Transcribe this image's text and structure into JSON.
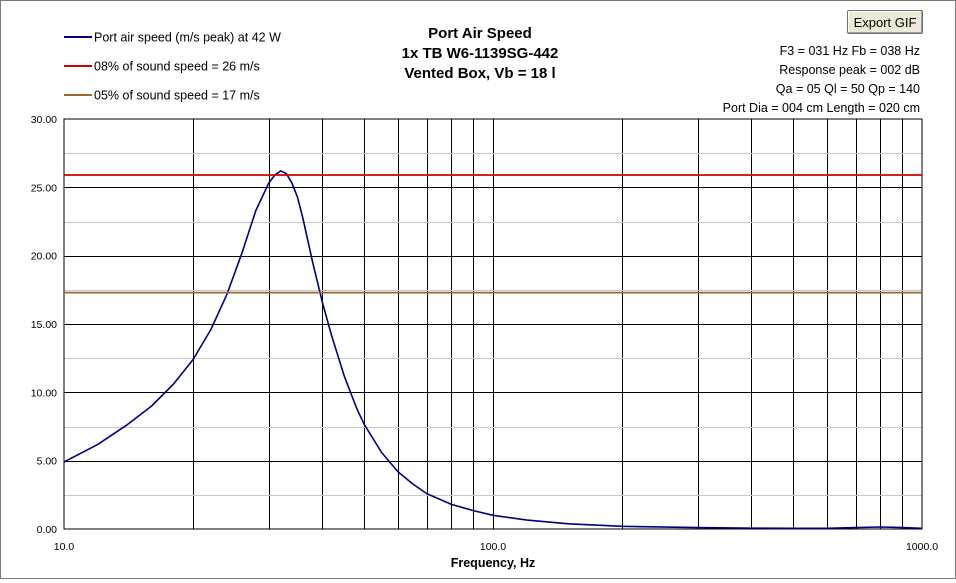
{
  "toolbar": {
    "export_label": "Export GIF"
  },
  "header": {
    "title_lines": [
      "Port Air Speed",
      "1x TB W6-1139SG-442",
      "Vented Box, Vb = 18 l"
    ],
    "info_lines": [
      "F3 = 031 Hz  Fb = 038 Hz",
      "Response peak = 002 dB",
      "Qa = 05  Ql = 50  Qp = 140",
      "Port Dia = 004 cm  Length = 020 cm"
    ]
  },
  "chart_data": {
    "type": "line",
    "xlabel": "Frequency, Hz",
    "ylabel": "",
    "x_scale": "log",
    "xlim": [
      10,
      1000
    ],
    "ylim": [
      0,
      30
    ],
    "x_tick_labels": [
      {
        "value": 10,
        "label": "10.0"
      },
      {
        "value": 100,
        "label": "100.0"
      },
      {
        "value": 1000,
        "label": "1000.0"
      }
    ],
    "y_tick_labels": [
      {
        "value": 0,
        "label": "0.00"
      },
      {
        "value": 5,
        "label": "5.00"
      },
      {
        "value": 10,
        "label": "10.00"
      },
      {
        "value": 15,
        "label": "15.00"
      },
      {
        "value": 20,
        "label": "20.00"
      },
      {
        "value": 25,
        "label": "25.00"
      },
      {
        "value": 30,
        "label": "30.00"
      }
    ],
    "grid": true,
    "legend_position": "top-left",
    "series": [
      {
        "name": "Port air speed (m/s peak) at 42 W",
        "color": "#00007f",
        "x": [
          10,
          12,
          14,
          16,
          18,
          20,
          22,
          24,
          26,
          28,
          30,
          31,
          32,
          33,
          34,
          35,
          36,
          38,
          40,
          42,
          45,
          48,
          50,
          55,
          60,
          65,
          70,
          80,
          90,
          100,
          120,
          150,
          200,
          300,
          400,
          500,
          600,
          700,
          800,
          900,
          1000
        ],
        "y": [
          4.9,
          6.2,
          7.6,
          9.0,
          10.6,
          12.4,
          14.6,
          17.2,
          20.2,
          23.3,
          25.3,
          25.9,
          26.2,
          26.0,
          25.3,
          24.3,
          22.8,
          19.5,
          16.6,
          14.2,
          11.2,
          8.9,
          7.7,
          5.6,
          4.2,
          3.3,
          2.6,
          1.8,
          1.35,
          1.0,
          0.65,
          0.38,
          0.2,
          0.1,
          0.06,
          0.05,
          0.05,
          0.1,
          0.15,
          0.1,
          0.05
        ]
      },
      {
        "name": "08% of sound speed = 26 m/s",
        "color": "#d00000",
        "x": [
          10,
          1000
        ],
        "y": [
          25.9,
          25.9
        ]
      },
      {
        "name": "05% of sound speed = 17 m/s",
        "color": "#996633",
        "x": [
          10,
          1000
        ],
        "y": [
          17.3,
          17.3
        ]
      }
    ]
  }
}
